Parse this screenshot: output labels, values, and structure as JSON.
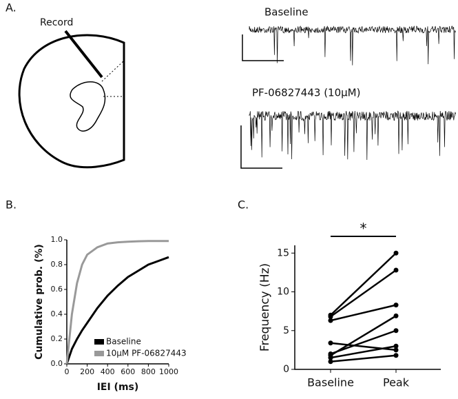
{
  "panel_labels": [
    "A.",
    "B.",
    "C."
  ],
  "diagram": {
    "record_label": "Record"
  },
  "traces": [
    {
      "label": "Baseline"
    },
    {
      "label": "PF-06827443 (10μM)"
    }
  ],
  "chart_data": [
    {
      "type": "line",
      "xlabel": "IEI (ms)",
      "ylabel": "Cumulative prob. (%)",
      "xlim": [
        0,
        1000
      ],
      "xticks": [
        0,
        200,
        400,
        600,
        800,
        1000
      ],
      "ylim": [
        0,
        1
      ],
      "yticks": [
        {
          "value": 0,
          "label": "0.0"
        },
        0.2,
        0.4,
        0.6,
        0.8,
        {
          "value": 1,
          "label": "1.0"
        }
      ],
      "x": [
        0,
        50,
        100,
        150,
        200,
        300,
        400,
        500,
        600,
        700,
        800,
        900,
        1000
      ],
      "series": [
        {
          "name": "Baseline",
          "color": "#000000",
          "values": [
            0,
            0.12,
            0.2,
            0.27,
            0.33,
            0.45,
            0.55,
            0.63,
            0.7,
            0.75,
            0.8,
            0.83,
            0.86
          ]
        },
        {
          "name": "10μM PF-06827443",
          "color": "#999999",
          "values": [
            0,
            0.4,
            0.65,
            0.8,
            0.88,
            0.94,
            0.97,
            0.98,
            0.985,
            0.988,
            0.99,
            0.99,
            0.99
          ]
        }
      ],
      "legend": "lower-right"
    },
    {
      "type": "paired",
      "ylabel": "Frequency (Hz)",
      "categories": [
        "Baseline",
        "Peak"
      ],
      "ylim": [
        0,
        16
      ],
      "yticks": [
        0,
        5,
        10,
        15
      ],
      "annotation": "*",
      "pairs": [
        [
          7.0,
          15.0
        ],
        [
          6.8,
          12.8
        ],
        [
          6.3,
          8.3
        ],
        [
          1.8,
          6.9
        ],
        [
          3.4,
          2.5
        ],
        [
          2.0,
          5.0
        ],
        [
          1.5,
          3.0
        ],
        [
          1.0,
          1.8
        ]
      ]
    }
  ]
}
